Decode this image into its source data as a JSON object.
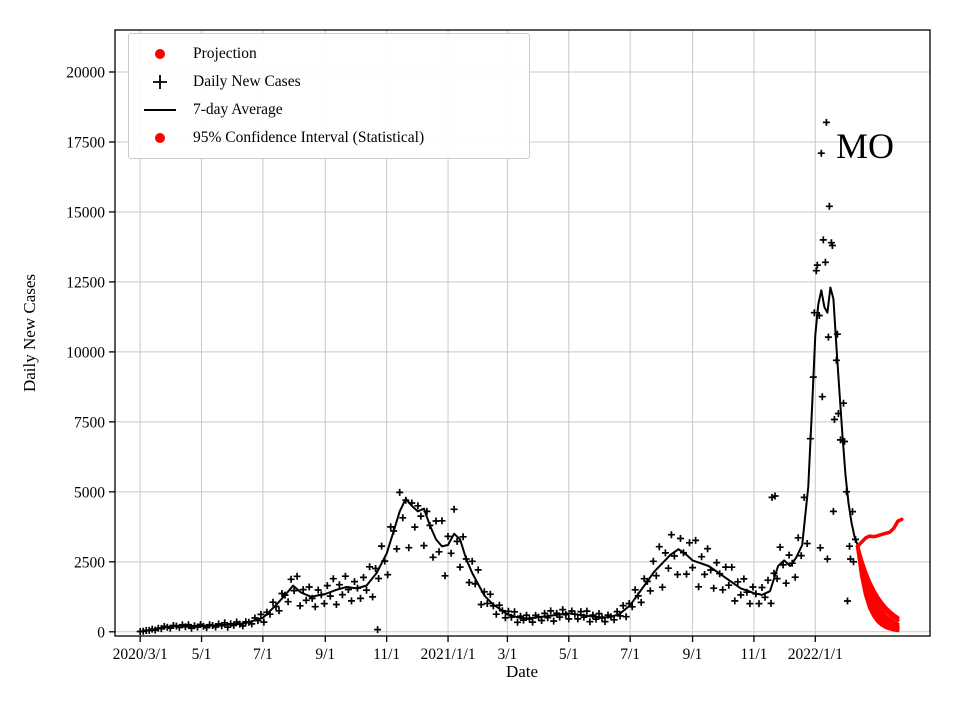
{
  "annotation": {
    "text": "MO"
  },
  "legend": {
    "items": [
      {
        "label": "Projection",
        "marker": "dot",
        "color": "#ff0000"
      },
      {
        "label": "Daily New Cases",
        "marker": "plus",
        "color": "#000000"
      },
      {
        "label": "7-day Average",
        "marker": "line",
        "color": "#000000"
      },
      {
        "label": "95% Confidence Interval (Statistical)",
        "marker": "dot",
        "color": "#ff0000"
      }
    ]
  },
  "chart_data": {
    "type": "scatter",
    "title": "",
    "xlabel": "Date",
    "ylabel": "Daily New Cases",
    "x_unit": "days since 2020/3/1",
    "xlim": [
      -25,
      785
    ],
    "ylim": [
      -150,
      21500
    ],
    "grid": true,
    "grid_color": "#c9c9c9",
    "yticks": [
      0,
      2500,
      5000,
      7500,
      10000,
      12500,
      15000,
      17500,
      20000
    ],
    "xtick_pos": [
      0,
      61,
      122,
      184,
      245,
      306,
      365,
      426,
      487,
      549,
      610,
      671
    ],
    "xtick_labels": [
      "2020/3/1",
      "5/1",
      "7/1",
      "9/1",
      "11/1",
      "2021/1/1",
      "3/1",
      "5/1",
      "7/1",
      "9/1",
      "11/1",
      "2022/1/1"
    ],
    "legend_position": "upper left",
    "series": [
      {
        "name": "Daily New Cases",
        "type": "scatter-plus",
        "color": "#000000",
        "x": [
          0,
          3,
          6,
          9,
          12,
          15,
          18,
          21,
          24,
          27,
          30,
          33,
          36,
          39,
          42,
          45,
          48,
          51,
          54,
          57,
          60,
          63,
          66,
          69,
          72,
          75,
          78,
          81,
          84,
          87,
          90,
          93,
          96,
          99,
          102,
          105,
          108,
          111,
          114,
          117,
          120,
          123,
          126,
          129,
          132,
          135,
          138,
          141,
          144,
          147,
          150,
          153,
          156,
          159,
          162,
          165,
          168,
          171,
          174,
          177,
          180,
          183,
          186,
          189,
          192,
          195,
          198,
          201,
          204,
          207,
          210,
          213,
          216,
          219,
          222,
          225,
          228,
          231,
          234,
          237,
          240,
          243,
          246,
          249,
          252,
          255,
          258,
          261,
          264,
          267,
          270,
          273,
          276,
          279,
          282,
          285,
          288,
          291,
          294,
          297,
          300,
          303,
          306,
          309,
          312,
          315,
          318,
          321,
          324,
          327,
          330,
          333,
          336,
          339,
          342,
          345,
          348,
          351,
          354,
          357,
          360,
          363,
          366,
          369,
          372,
          375,
          378,
          381,
          384,
          387,
          390,
          393,
          396,
          399,
          402,
          405,
          408,
          411,
          414,
          417,
          420,
          423,
          426,
          429,
          432,
          435,
          438,
          441,
          444,
          447,
          450,
          453,
          456,
          459,
          462,
          465,
          468,
          471,
          474,
          477,
          480,
          483,
          486,
          489,
          492,
          495,
          498,
          501,
          504,
          507,
          510,
          513,
          516,
          519,
          522,
          525,
          528,
          531,
          534,
          537,
          540,
          543,
          546,
          549,
          552,
          555,
          558,
          561,
          564,
          567,
          570,
          573,
          576,
          579,
          582,
          585,
          588,
          591,
          594,
          597,
          600,
          603,
          606,
          609,
          612,
          615,
          618,
          621,
          624,
          627,
          630,
          633,
          636,
          639,
          642,
          645,
          648,
          651,
          654,
          657,
          660,
          663,
          666,
          669,
          672,
          675,
          678,
          681,
          684,
          687,
          690,
          693,
          696,
          699,
          702,
          705,
          708,
          711,
          236,
          628,
          631,
          670,
          673,
          676,
          677,
          679,
          682,
          683,
          685,
          688,
          689,
          692,
          694,
          700,
          703,
          706,
          709
        ],
        "y": [
          10,
          19,
          48,
          50,
          96,
          62,
          128,
          116,
          193,
          163,
          133,
          225,
          202,
          156,
          247,
          180,
          252,
          124,
          215,
          171,
          260,
          201,
          151,
          254,
          226,
          173,
          283,
          218,
          322,
          165,
          286,
          230,
          350,
          276,
          210,
          357,
          343,
          283,
          492,
          400,
          620,
          347,
          700,
          630,
          1056,
          903,
          749,
          1369,
          1310,
          1077,
          1877,
          1471,
          1983,
          930,
          1507,
          1126,
          1600,
          1194,
          895,
          1495,
          1321,
          1007,
          1650,
          1276,
          1897,
          975,
          1683,
          1326,
          1988,
          1511,
          1103,
          1794,
          1560,
          1193,
          1944,
          1485,
          2321,
          1248,
          2261,
          1904,
          3063,
          2527,
          2040,
          3746,
          3600,
          2963,
          4980,
          4073,
          4700,
          3006,
          4600,
          3740,
          4500,
          4133,
          3080,
          4300,
          3800,
          2663,
          3960,
          2858,
          3965,
          1999,
          3410,
          2805,
          4375,
          3230,
          2310,
          3393,
          2600,
          1763,
          2520,
          1710,
          2210,
          975,
          1430,
          1010,
          1344,
          926,
          630,
          949,
          755,
          499,
          732,
          522,
          715,
          338,
          556,
          417,
          594,
          456,
          347,
          587,
          524,
          402,
          658,
          504,
          748,
          384,
          666,
          527,
          793,
          616,
          462,
          742,
          630,
          461,
          720,
          527,
          741,
          361,
          595,
          452,
          650,
          494,
          364,
          598,
          540,
          428,
          720,
          567,
          936,
          540,
          1012,
          893,
          1500,
          1283,
          1050,
          1898,
          1800,
          1463,
          2520,
          2003,
          3039,
          1593,
          2819,
          2274,
          3469,
          2708,
          2048,
          3335,
          2825,
          2063,
          3180,
          2295,
          3267,
          1609,
          2682,
          2051,
          2969,
          2209,
          1558,
          2473,
          2075,
          1500,
          2310,
          1665,
          2308,
          1105,
          1788,
          1318,
          1891,
          1414,
          1007,
          1602,
          1356,
          1007,
          1584,
          1232,
          1843,
          1016,
          2090,
          1902,
          3021,
          2391,
          1738,
          2740,
          2450,
          1950,
          3360,
          2723,
          4800,
          3153,
          6900,
          9100,
          12900,
          11300,
          8400,
          13200,
          10530,
          13900,
          7583,
          10633,
          6857,
          8167,
          5003,
          3057,
          4293,
          3300,
          80,
          4800,
          4850,
          11400,
          13100,
          3000,
          17100,
          14000,
          18200,
          2600,
          15200,
          13800,
          4300,
          9700,
          7800,
          6800,
          1100,
          2600,
          2500
        ]
      },
      {
        "name": "7-day Average",
        "type": "line",
        "color": "#000000",
        "width": 2,
        "x": [
          0,
          10,
          20,
          30,
          40,
          50,
          61,
          75,
          90,
          105,
          122,
          135,
          145,
          152,
          160,
          170,
          184,
          195,
          205,
          215,
          225,
          235,
          245,
          252,
          258,
          264,
          270,
          276,
          282,
          288,
          294,
          300,
          306,
          312,
          318,
          324,
          330,
          336,
          342,
          350,
          358,
          365,
          375,
          385,
          395,
          405,
          415,
          426,
          436,
          446,
          456,
          466,
          476,
          487,
          495,
          503,
          511,
          519,
          527,
          535,
          543,
          549,
          557,
          565,
          573,
          581,
          589,
          597,
          605,
          610,
          618,
          626,
          634,
          640,
          646,
          652,
          658,
          664,
          668,
          671,
          674,
          677,
          680,
          683,
          686,
          689,
          692,
          695,
          698,
          701,
          704,
          707,
          710,
          713
        ],
        "y": [
          10,
          60,
          130,
          190,
          210,
          190,
          210,
          230,
          260,
          310,
          500,
          950,
          1350,
          1650,
          1400,
          1250,
          1350,
          1500,
          1600,
          1550,
          1650,
          2100,
          2800,
          3600,
          4300,
          4750,
          4500,
          4300,
          4400,
          3800,
          3300,
          3050,
          3100,
          3500,
          3300,
          2600,
          2100,
          1700,
          1300,
          1000,
          800,
          620,
          520,
          470,
          520,
          560,
          610,
          660,
          610,
          560,
          520,
          520,
          620,
          950,
          1350,
          1750,
          2150,
          2450,
          2750,
          2950,
          2750,
          2550,
          2450,
          2350,
          2150,
          1950,
          1750,
          1550,
          1450,
          1380,
          1320,
          1450,
          2350,
          2550,
          2350,
          2650,
          3100,
          5200,
          8200,
          10600,
          11700,
          12200,
          11600,
          11400,
          12300,
          11900,
          10200,
          8600,
          7000,
          5600,
          4600,
          3900,
          3400,
          3100
        ]
      },
      {
        "name": "Projection / 95% Confidence Interval (Statistical)",
        "type": "projection",
        "color": "#ff0000",
        "width": 3.5,
        "curves": [
          {
            "x": [
              713,
              717,
              721,
              725,
              729,
              733,
              737,
              741,
              745,
              749,
              753,
              757
            ],
            "y": [
              3050,
              3200,
              3350,
              3420,
              3400,
              3430,
              3480,
              3520,
              3560,
              3700,
              3950,
              4020
            ]
          },
          {
            "x": [
              713,
              717,
              721,
              725,
              729,
              733,
              737,
              741,
              745,
              749,
              753
            ],
            "y": [
              3050,
              2547,
              2129,
              1778,
              1485,
              1241,
              1037,
              866,
              723,
              604,
              503
            ]
          },
          {
            "x": [
              713,
              717,
              721,
              725,
              729,
              733,
              737,
              741,
              745,
              749,
              753
            ],
            "y": [
              3050,
              2498,
              2046,
              1676,
              1372,
              1124,
              920,
              754,
              617,
              505,
              414
            ]
          },
          {
            "x": [
              713,
              717,
              721,
              725,
              729,
              733,
              737,
              741,
              745,
              749,
              753
            ],
            "y": [
              3050,
              2400,
              1889,
              1487,
              1170,
              921,
              725,
              570,
              449,
              353,
              278
            ]
          },
          {
            "x": [
              713,
              717,
              721,
              725,
              729,
              733,
              737,
              741,
              745,
              749,
              753
            ],
            "y": [
              3050,
              2324,
              1771,
              1350,
              1029,
              784,
              597,
              455,
              347,
              264,
              201
            ]
          },
          {
            "x": [
              713,
              717,
              721,
              725,
              729,
              733,
              737,
              741,
              745,
              749,
              753
            ],
            "y": [
              3050,
              2260,
              1674,
              1240,
              919,
              681,
              505,
              374,
              277,
              205,
              152
            ]
          },
          {
            "x": [
              713,
              717,
              721,
              725,
              729,
              733,
              737,
              741,
              745,
              749,
              753
            ],
            "y": [
              3050,
              2196,
              1581,
              1138,
              819,
              590,
              425,
              306,
              220,
              158,
              114
            ]
          },
          {
            "x": [
              713,
              717,
              721,
              725,
              729,
              733,
              737,
              741,
              745,
              749,
              753
            ],
            "y": [
              3050,
              2129,
              1486,
              1037,
              724,
              505,
              353,
              246,
              172,
              120,
              84
            ]
          },
          {
            "x": [
              713,
              717,
              721,
              725,
              729,
              733,
              737,
              741,
              745,
              749,
              753
            ],
            "y": [
              3050,
              2004,
              1317,
              865,
              568,
              373,
              245,
              161,
              106,
              70,
              46
            ]
          }
        ]
      }
    ]
  }
}
